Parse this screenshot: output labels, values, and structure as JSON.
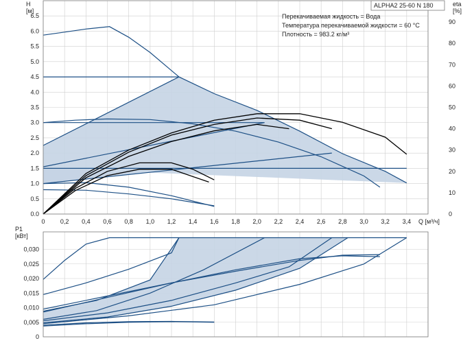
{
  "chart_data": [
    {
      "type": "line",
      "title": "ALPHA2 25-60 N 180",
      "xlabel": "Q [м³/ч]",
      "ylabel": "H\n[м]",
      "y2label": "eta\n[%]",
      "xlim": [
        0,
        3.6
      ],
      "ylim": [
        0,
        7.0
      ],
      "y2lim": [
        0,
        100
      ],
      "xticks": [
        "0",
        "0,2",
        "0,4",
        "0,6",
        "0,8",
        "1,0",
        "1,2",
        "1,4",
        "1,6",
        "1,8",
        "2,0",
        "2,2",
        "2,4",
        "2,6",
        "2,8",
        "3,0",
        "3,2",
        "3,4"
      ],
      "yticks": [
        "0.0",
        "0.5",
        "1.0",
        "1.5",
        "2.0",
        "2.5",
        "3.0",
        "3.5",
        "4.0",
        "4.5",
        "5.0",
        "5.5",
        "6.0",
        "6.5"
      ],
      "y2ticks": [
        "0",
        "10",
        "20",
        "30",
        "40",
        "50",
        "60",
        "70",
        "80",
        "90"
      ],
      "annotations": [
        "Перекачиваемая жидкость = Вода",
        "Температура перекачиваемой жидкости = 60 °C",
        "Плотность = 983.2 кг/м³"
      ],
      "colors": {
        "curve": "#1c4f85",
        "area": "#c5d4e4",
        "efficiency": "#000000",
        "grid": "#cfcfcf"
      },
      "grid": true,
      "series": [
        {
          "kind": "head",
          "points": [
            [
              0,
              5.87
            ],
            [
              0.2,
              5.97
            ],
            [
              0.4,
              6.07
            ],
            [
              0.62,
              6.15
            ],
            [
              0.8,
              5.8
            ],
            [
              1.0,
              5.3
            ],
            [
              1.27,
              4.5
            ],
            [
              1.6,
              3.95
            ],
            [
              2.0,
              3.4
            ],
            [
              2.4,
              2.72
            ],
            [
              2.8,
              1.98
            ],
            [
              3.2,
              1.4
            ],
            [
              3.4,
              1.02
            ]
          ]
        },
        {
          "kind": "head",
          "points": [
            [
              0,
              4.5
            ],
            [
              1.27,
              4.5
            ]
          ]
        },
        {
          "kind": "head",
          "points": [
            [
              0,
              3.0
            ],
            [
              0.3,
              3.08
            ],
            [
              0.6,
              3.12
            ],
            [
              1.0,
              3.1
            ],
            [
              1.4,
              2.96
            ],
            [
              1.8,
              2.72
            ],
            [
              2.2,
              2.36
            ],
            [
              2.6,
              1.88
            ],
            [
              3.0,
              1.25
            ],
            [
              3.15,
              0.88
            ]
          ]
        },
        {
          "kind": "head",
          "points": [
            [
              0,
              3.0
            ],
            [
              2.07,
              3.0
            ]
          ]
        },
        {
          "kind": "head",
          "points": [
            [
              0,
              1.5
            ],
            [
              3.4,
              1.5
            ]
          ]
        },
        {
          "kind": "head",
          "points": [
            [
              0,
              0.8
            ],
            [
              0.4,
              0.78
            ],
            [
              0.8,
              0.66
            ],
            [
              1.2,
              0.5
            ],
            [
              1.6,
              0.27
            ]
          ]
        },
        {
          "kind": "head",
          "points": [
            [
              0,
              2.25
            ],
            [
              1.27,
              4.5
            ]
          ]
        },
        {
          "kind": "head",
          "points": [
            [
              0,
              1.55
            ],
            [
              2.07,
              3.0
            ]
          ]
        },
        {
          "kind": "head",
          "points": [
            [
              0,
              1.0
            ],
            [
              2.7,
              2.0
            ]
          ]
        },
        {
          "kind": "head",
          "points": [
            [
              0,
              1.0
            ],
            [
              0.4,
              1.03
            ],
            [
              0.8,
              0.88
            ],
            [
              1.2,
              0.6
            ],
            [
              1.6,
              0.25
            ]
          ]
        },
        {
          "kind": "efficiency",
          "points": [
            [
              0,
              0
            ],
            [
              0.4,
              19
            ],
            [
              0.8,
              30
            ],
            [
              1.2,
              38
            ],
            [
              1.6,
              44
            ],
            [
              2.0,
              47
            ],
            [
              2.4,
              47
            ],
            [
              2.8,
              43
            ],
            [
              3.2,
              36
            ],
            [
              3.4,
              28
            ]
          ]
        },
        {
          "kind": "efficiency",
          "points": [
            [
              0,
              0
            ],
            [
              0.4,
              18
            ],
            [
              0.8,
              29
            ],
            [
              1.2,
              37
            ],
            [
              1.6,
              42
            ],
            [
              2.0,
              45
            ],
            [
              2.4,
              44
            ],
            [
              2.7,
              40
            ]
          ]
        },
        {
          "kind": "efficiency",
          "points": [
            [
              0,
              0
            ],
            [
              0.4,
              17
            ],
            [
              0.8,
              27
            ],
            [
              1.2,
              34
            ],
            [
              1.6,
              39
            ],
            [
              2.0,
              42
            ],
            [
              2.3,
              40
            ]
          ]
        },
        {
          "kind": "efficiency",
          "points": [
            [
              0,
              0
            ],
            [
              0.3,
              12
            ],
            [
              0.6,
              20
            ],
            [
              0.9,
              24
            ],
            [
              1.2,
              24
            ],
            [
              1.4,
              21
            ],
            [
              1.6,
              16
            ]
          ]
        },
        {
          "kind": "efficiency",
          "points": [
            [
              0,
              0
            ],
            [
              0.3,
              11
            ],
            [
              0.6,
              18
            ],
            [
              0.9,
              21
            ],
            [
              1.2,
              21
            ],
            [
              1.55,
              15
            ]
          ]
        }
      ]
    },
    {
      "type": "line",
      "title": "",
      "xlabel": "",
      "ylabel": "P1\n[кВт]",
      "xlim": [
        0,
        3.6
      ],
      "ylim": [
        0,
        0.036
      ],
      "yticks": [
        "0",
        "0,005",
        "0,010",
        "0,015",
        "0,020",
        "0,025",
        "0,030"
      ],
      "grid": true,
      "series": [
        {
          "points": [
            [
              0,
              0.0197
            ],
            [
              0.2,
              0.0262
            ],
            [
              0.4,
              0.0318
            ],
            [
              0.62,
              0.034
            ],
            [
              3.4,
              0.034
            ]
          ]
        },
        {
          "points": [
            [
              0,
              0.0145
            ],
            [
              0.4,
              0.0185
            ],
            [
              0.8,
              0.0232
            ],
            [
              1.2,
              0.0288
            ],
            [
              1.27,
              0.034
            ]
          ]
        },
        {
          "points": [
            [
              0,
              0.0088
            ],
            [
              0.5,
              0.0125
            ],
            [
              1.0,
              0.0195
            ],
            [
              1.27,
              0.034
            ]
          ]
        },
        {
          "points": [
            [
              0,
              0.006
            ],
            [
              0.5,
              0.009
            ],
            [
              1.0,
              0.015
            ],
            [
              1.5,
              0.023
            ],
            [
              2.07,
              0.034
            ]
          ]
        },
        {
          "points": [
            [
              0,
              0.0055
            ],
            [
              0.6,
              0.0082
            ],
            [
              1.2,
              0.0125
            ],
            [
              1.8,
              0.0185
            ],
            [
              2.3,
              0.024
            ],
            [
              2.7,
              0.034
            ]
          ]
        },
        {
          "points": [
            [
              0,
              0.0048
            ],
            [
              0.6,
              0.0068
            ],
            [
              1.2,
              0.0105
            ],
            [
              1.8,
              0.016
            ],
            [
              2.4,
              0.0235
            ],
            [
              2.85,
              0.034
            ]
          ]
        },
        {
          "points": [
            [
              0,
              0.0045
            ],
            [
              0.8,
              0.0072
            ],
            [
              1.6,
              0.011
            ],
            [
              2.4,
              0.018
            ],
            [
              3.0,
              0.025
            ],
            [
              3.4,
              0.034
            ]
          ]
        },
        {
          "points": [
            [
              0,
              0.0085
            ],
            [
              0.6,
              0.0135
            ],
            [
              1.2,
              0.0185
            ],
            [
              1.8,
              0.023
            ],
            [
              2.4,
              0.0268
            ],
            [
              2.8,
              0.0278
            ],
            [
              3.15,
              0.0275
            ]
          ]
        },
        {
          "points": [
            [
              0,
              0.0095
            ],
            [
              0.6,
              0.014
            ],
            [
              1.2,
              0.0185
            ],
            [
              1.8,
              0.0225
            ],
            [
              2.4,
              0.0262
            ],
            [
              2.8,
              0.028
            ],
            [
              3.15,
              0.0282
            ]
          ]
        },
        {
          "points": [
            [
              0,
              0.004
            ],
            [
              0.4,
              0.0048
            ],
            [
              0.8,
              0.0052
            ],
            [
              1.2,
              0.0053
            ],
            [
              1.6,
              0.0051
            ]
          ]
        },
        {
          "points": [
            [
              0,
              0.0037
            ],
            [
              0.4,
              0.0045
            ],
            [
              0.8,
              0.005
            ],
            [
              1.2,
              0.0052
            ],
            [
              1.6,
              0.005
            ]
          ]
        }
      ]
    }
  ]
}
